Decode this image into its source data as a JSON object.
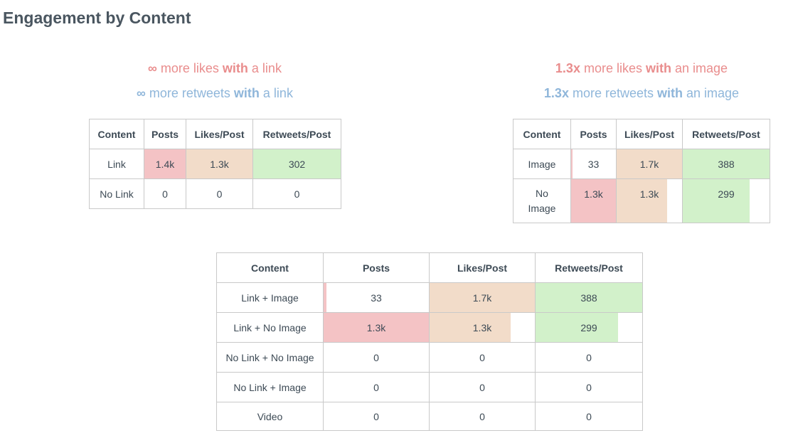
{
  "page": {
    "title": "Engagement by Content"
  },
  "panels": {
    "link": {
      "insights": {
        "likes": {
          "multiplier": "∞",
          "pre": " more likes ",
          "with": "with",
          "post": " a link"
        },
        "retweets": {
          "multiplier": "∞",
          "pre": " more retweets ",
          "with": "with",
          "post": " a link"
        }
      },
      "table": {
        "headers": [
          "Content",
          "Posts",
          "Likes/Post",
          "Retweets/Post"
        ],
        "rows": [
          {
            "content": "Link",
            "posts": "1.4k",
            "likes": "1.3k",
            "retweets": "302",
            "posts_level": 1.0,
            "likes_level": 1.0,
            "retweets_level": 1.0
          },
          {
            "content": "No Link",
            "posts": "0",
            "likes": "0",
            "retweets": "0",
            "posts_level": 0,
            "likes_level": 0,
            "retweets_level": 0
          }
        ]
      }
    },
    "image": {
      "insights": {
        "likes": {
          "multiplier": "1.3x",
          "pre": " more likes ",
          "with": "with",
          "post": " an image"
        },
        "retweets": {
          "multiplier": "1.3x",
          "pre": " more retweets ",
          "with": "with",
          "post": " an image"
        }
      },
      "table": {
        "headers": [
          "Content",
          "Posts",
          "Likes/Post",
          "Retweets/Post"
        ],
        "rows": [
          {
            "content": "Image",
            "posts": "33",
            "likes": "1.7k",
            "retweets": "388",
            "posts_level": 0.025,
            "likes_level": 1.0,
            "retweets_level": 1.0
          },
          {
            "content": "No Image",
            "posts": "1.3k",
            "likes": "1.3k",
            "retweets": "299",
            "posts_level": 1.0,
            "likes_level": 0.77,
            "retweets_level": 0.77
          }
        ]
      }
    },
    "combined": {
      "table": {
        "headers": [
          "Content",
          "Posts",
          "Likes/Post",
          "Retweets/Post"
        ],
        "rows": [
          {
            "content": "Link + Image",
            "posts": "33",
            "likes": "1.7k",
            "retweets": "388",
            "posts_level": 0.025,
            "likes_level": 1.0,
            "retweets_level": 1.0
          },
          {
            "content": "Link + No Image",
            "posts": "1.3k",
            "likes": "1.3k",
            "retweets": "299",
            "posts_level": 1.0,
            "likes_level": 0.77,
            "retweets_level": 0.77
          },
          {
            "content": "No Link + No Image",
            "posts": "0",
            "likes": "0",
            "retweets": "0",
            "posts_level": 0,
            "likes_level": 0,
            "retweets_level": 0
          },
          {
            "content": "No Link + Image",
            "posts": "0",
            "likes": "0",
            "retweets": "0",
            "posts_level": 0,
            "likes_level": 0,
            "retweets_level": 0
          },
          {
            "content": "Video",
            "posts": "0",
            "likes": "0",
            "retweets": "0",
            "posts_level": 0,
            "likes_level": 0,
            "retweets_level": 0
          }
        ]
      }
    }
  },
  "colors": {
    "likes_text": "#e98d8d",
    "retweets_text": "#8fb6da",
    "posts_fill": "#f4c3c5",
    "likes_fill": "#f2dcc9",
    "retweets_fill": "#d2f1ca"
  }
}
